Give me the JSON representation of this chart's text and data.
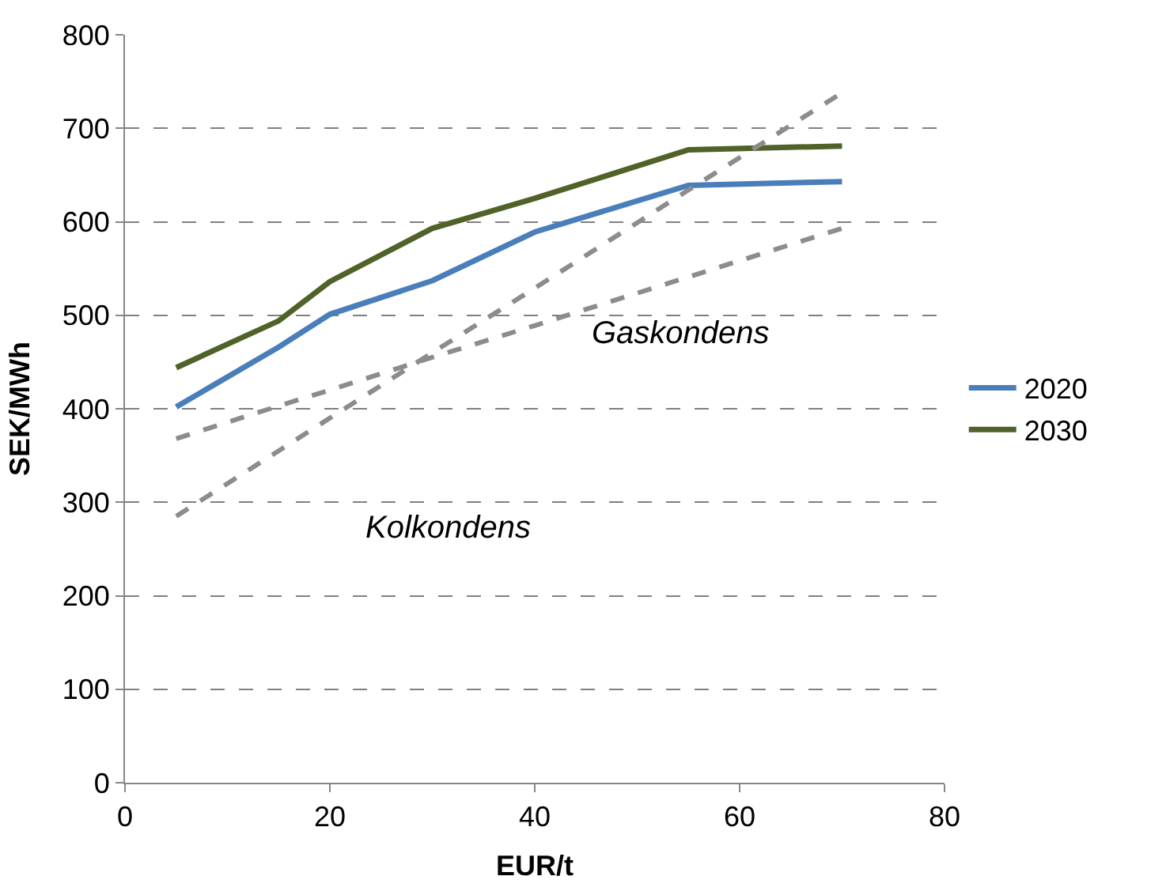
{
  "chart_data": {
    "type": "line",
    "xlabel": "EUR/t",
    "ylabel": "SEK/MWh",
    "x": [
      5,
      15,
      20,
      30,
      40,
      55,
      70
    ],
    "series": [
      {
        "name": "2020",
        "color": "#4a7ebb",
        "values": [
          402,
          466,
          501,
          537,
          589,
          639,
          643
        ]
      },
      {
        "name": "2030",
        "color": "#4f6228",
        "values": [
          444,
          494,
          536,
          593,
          625,
          677,
          681
        ]
      },
      {
        "color": "#8c8c8c",
        "line_style": "dashed",
        "values": [
          285,
          355,
          390,
          460,
          529,
          634,
          738
        ]
      },
      {
        "color": "#8c8c8c",
        "line_style": "dashed",
        "values": [
          368,
          403,
          420,
          455,
          489,
          541,
          593
        ]
      }
    ],
    "annotations": [
      "Kolkondens",
      "Gaskondens"
    ],
    "xlim": [
      0,
      80
    ],
    "xticks": [
      0,
      20,
      40,
      60,
      80
    ],
    "ylim": [
      0,
      800
    ],
    "yticks": [
      0,
      100,
      200,
      300,
      400,
      500,
      600,
      700,
      800
    ],
    "grid": "y",
    "legend": "right",
    "marker": "none",
    "line_style": "solid"
  }
}
